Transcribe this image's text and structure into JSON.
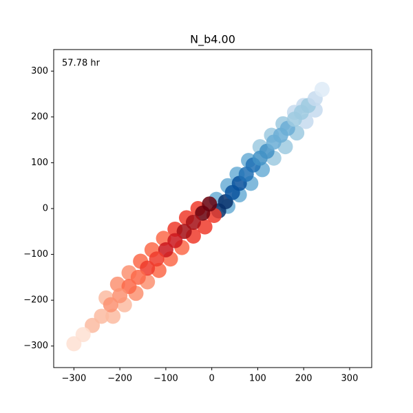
{
  "chart_data": {
    "type": "scatter",
    "title": "N_b4.00",
    "annotation": "57.78 hr",
    "xlim": [
      -344,
      348
    ],
    "ylim": [
      -347,
      347
    ],
    "xticks": [
      {
        "value": -300,
        "label": "−300"
      },
      {
        "value": -200,
        "label": "−200"
      },
      {
        "value": -100,
        "label": "−100"
      },
      0,
      100,
      200,
      300
    ],
    "yticks": [
      {
        "value": -300,
        "label": "−300"
      },
      {
        "value": -200,
        "label": "−200"
      },
      {
        "value": -100,
        "label": "−100"
      },
      0,
      100,
      200,
      300
    ],
    "series": [
      {
        "x": [
          10,
          35,
          55,
          80,
          105,
          130,
          155,
          180,
          200,
          35,
          60,
          85,
          110,
          135,
          160,
          185,
          205,
          225,
          15,
          30,
          45,
          60,
          75,
          90,
          105,
          120,
          135,
          150,
          165,
          180,
          195,
          210,
          225,
          240
        ],
        "y": [
          20,
          50,
          75,
          105,
          135,
          160,
          185,
          210,
          225,
          5,
          30,
          55,
          85,
          110,
          135,
          165,
          190,
          215,
          -5,
          15,
          35,
          55,
          75,
          95,
          110,
          125,
          145,
          160,
          175,
          195,
          210,
          225,
          240,
          260
        ],
        "colors": [
          "#6baed6",
          "#6baed6",
          "#6baed6",
          "#6baed6",
          "#9ecae1",
          "#9ecae1",
          "#9ecae1",
          "#c6dbef",
          "#c6dbef",
          "#6baed6",
          "#6baed6",
          "#6baed6",
          "#6baed6",
          "#9ecae1",
          "#9ecae1",
          "#9ecae1",
          "#c6dbef",
          "#c6dbef",
          "#08306b",
          "#08306b",
          "#08519c",
          "#08519c",
          "#2171b5",
          "#2171b5",
          "#4292c6",
          "#4292c6",
          "#6baed6",
          "#6baed6",
          "#6baed6",
          "#9ecae1",
          "#9ecae1",
          "#9ecae1",
          "#c6dbef",
          "#deebf7"
        ]
      },
      {
        "x": [
          -30,
          -55,
          -80,
          -105,
          -130,
          -155,
          -180,
          -205,
          -230,
          5,
          -15,
          -40,
          -65,
          -90,
          -115,
          -140,
          -165,
          -190,
          -215,
          -5,
          -20,
          -40,
          -60,
          -80,
          -100,
          -120,
          -140,
          -160,
          -180,
          -200,
          -220,
          -240,
          -260,
          -280,
          -300
        ],
        "y": [
          0,
          -20,
          -45,
          -65,
          -90,
          -115,
          -140,
          -165,
          -195,
          -15,
          -40,
          -60,
          -85,
          -110,
          -135,
          -160,
          -185,
          -210,
          -235,
          10,
          -10,
          -30,
          -50,
          -70,
          -90,
          -110,
          -130,
          -150,
          -170,
          -190,
          -210,
          -235,
          -255,
          -275,
          -295
        ],
        "colors": [
          "#ef3b2c",
          "#ef3b2c",
          "#ef3b2c",
          "#fb6a4a",
          "#fb6a4a",
          "#fb6a4a",
          "#fc9272",
          "#fc9272",
          "#fcbba1",
          "#ef3b2c",
          "#ef3b2c",
          "#ef3b2c",
          "#fb6a4a",
          "#fb6a4a",
          "#fb6a4a",
          "#fc9272",
          "#fc9272",
          "#fcbba1",
          "#fcbba1",
          "#67000d",
          "#67000d",
          "#a50f15",
          "#a50f15",
          "#cb181d",
          "#cb181d",
          "#ef3b2c",
          "#ef3b2c",
          "#fb6a4a",
          "#fb6a4a",
          "#fc9272",
          "#fc9272",
          "#fcbba1",
          "#fcbba1",
          "#fee0d2",
          "#fee0d2"
        ]
      }
    ]
  }
}
